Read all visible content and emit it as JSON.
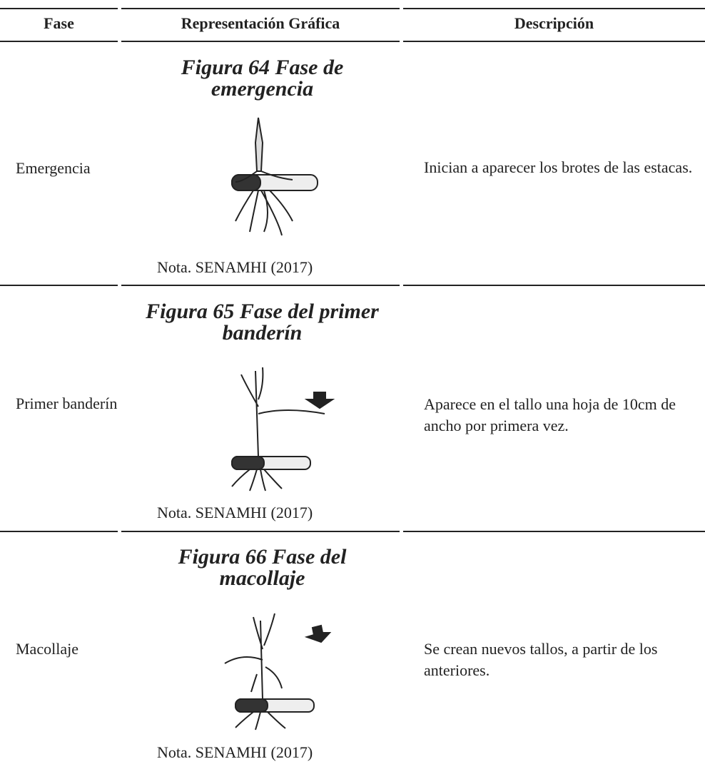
{
  "table": {
    "header": [
      "Fase",
      "Representación Gráfica",
      "Descripción"
    ],
    "rows": [
      {
        "fase": "Emergencia",
        "figure_title": "Figura 64 Fase de emergencia",
        "note": "Nota. SENAMHI (2017)",
        "descripcion": "Inician a aparecer los brotes de las estacas."
      },
      {
        "fase": "Primer banderín",
        "figure_title": "Figura 65 Fase del primer banderín",
        "note": "Nota. SENAMHI (2017)",
        "descripcion": "Aparece en el tallo una hoja de 10cm de ancho por primera vez."
      },
      {
        "fase": "Macollaje",
        "figure_title": "Figura 66 Fase del macollaje",
        "note": "Nota. SENAMHI (2017)",
        "descripcion": "Se crean nuevos tallos, a partir de los anteriores."
      }
    ]
  }
}
